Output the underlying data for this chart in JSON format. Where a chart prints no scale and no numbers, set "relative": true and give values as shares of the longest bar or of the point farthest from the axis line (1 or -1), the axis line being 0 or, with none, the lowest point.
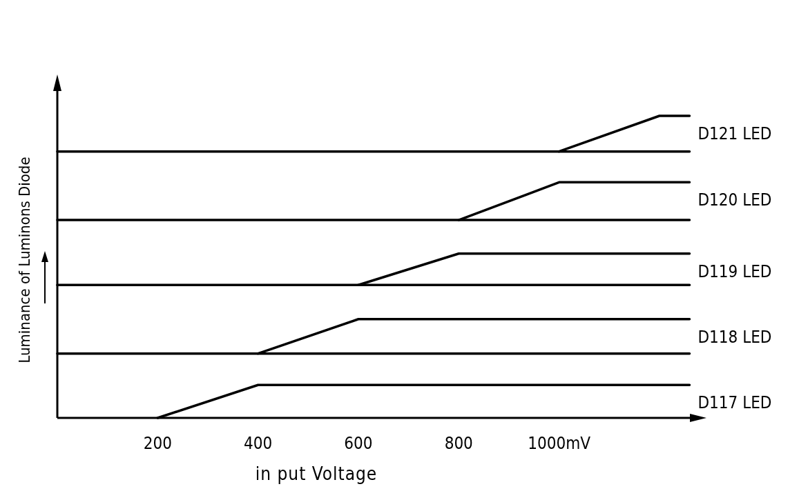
{
  "chart_data": {
    "type": "line",
    "relative": true,
    "xlabel": "in put Voltage",
    "ylabel": "Luminance of Luminons Diode",
    "xlim": [
      0,
      1280
    ],
    "xticks": [
      200,
      400,
      600,
      800,
      {
        "value": 1000,
        "label": "1000mV"
      }
    ],
    "grid": false,
    "marker": "none",
    "line_style": "solid",
    "series": [
      {
        "name": "D117 LED",
        "color": "#000000",
        "x": [
          200,
          400,
          1260
        ],
        "values": [
          0,
          0.109,
          0.109
        ]
      },
      {
        "color": "#000000",
        "x": [
          0,
          1260
        ],
        "values": [
          0.213,
          0.213
        ]
      },
      {
        "name": "D118 LED",
        "color": "#000000",
        "x": [
          400,
          600,
          1260
        ],
        "values": [
          0.213,
          0.327,
          0.327
        ]
      },
      {
        "color": "#000000",
        "x": [
          0,
          1260
        ],
        "values": [
          0.44,
          0.44
        ]
      },
      {
        "name": "D119 LED",
        "color": "#000000",
        "x": [
          600,
          800,
          1260
        ],
        "values": [
          0.44,
          0.544,
          0.544
        ]
      },
      {
        "color": "#000000",
        "x": [
          0,
          1260
        ],
        "values": [
          0.655,
          0.655
        ]
      },
      {
        "name": "D120 LED",
        "color": "#000000",
        "x": [
          800,
          1000,
          1260
        ],
        "values": [
          0.655,
          0.78,
          0.78
        ]
      },
      {
        "color": "#000000",
        "x": [
          0,
          1260
        ],
        "values": [
          0.882,
          0.882
        ]
      },
      {
        "name": "D121 LED",
        "color": "#000000",
        "x": [
          1000,
          1200,
          1260
        ],
        "values": [
          0.882,
          1,
          1
        ]
      }
    ]
  }
}
